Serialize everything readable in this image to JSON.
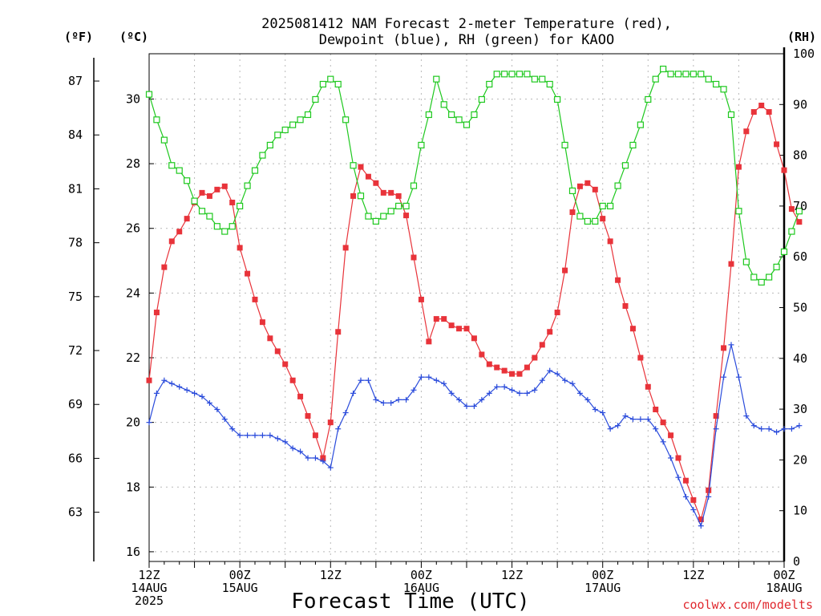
{
  "title_line1": "2025081412 NAM Forecast 2-meter Temperature (red),",
  "title_line2": "Dewpoint (blue), RH (green) for KAOO",
  "unit_f": "(ºF)",
  "unit_c": "(ºC)",
  "unit_rh": "(RH)",
  "x_label": "Forecast Time (UTC)",
  "credit": "coolwx.com/modelts",
  "colors": {
    "temperature": "#e8333a",
    "dewpoint": "#2a4bdb",
    "rh": "#1ec81e"
  },
  "chart_data": {
    "type": "line",
    "title": "2025081412 NAM Forecast 2-meter Temperature (red), Dewpoint (blue), RH (green) for KAOO",
    "xlabel": "Forecast Time (UTC)",
    "x_unit": "forecast hour from 2025-08-14 12Z",
    "x_range": [
      0,
      84
    ],
    "x_ticks": [
      {
        "hour": 0,
        "lines": [
          "12Z",
          "14AUG",
          "2025"
        ]
      },
      {
        "hour": 12,
        "lines": [
          "00Z",
          "15AUG"
        ]
      },
      {
        "hour": 24,
        "lines": [
          "12Z"
        ]
      },
      {
        "hour": 36,
        "lines": [
          "00Z",
          "16AUG"
        ]
      },
      {
        "hour": 48,
        "lines": [
          "12Z"
        ]
      },
      {
        "hour": 60,
        "lines": [
          "00Z",
          "17AUG"
        ]
      },
      {
        "hour": 72,
        "lines": [
          "12Z"
        ]
      },
      {
        "hour": 84,
        "lines": [
          "00Z",
          "18AUG"
        ]
      }
    ],
    "celsius_axis": {
      "range": [
        15.7,
        31.4
      ],
      "ticks": [
        16,
        18,
        20,
        22,
        24,
        26,
        28,
        30
      ]
    },
    "fahrenheit_axis": {
      "ticks": [
        63,
        66,
        69,
        72,
        75,
        78,
        81,
        84,
        87
      ]
    },
    "rh_axis": {
      "range": [
        0,
        100
      ],
      "ticks": [
        0,
        10,
        20,
        30,
        40,
        50,
        60,
        70,
        80,
        90,
        100
      ]
    },
    "grid": true,
    "series": [
      {
        "name": "Temperature (red)",
        "axis": "celsius",
        "marker": "filled-square",
        "values": [
          21.3,
          23.4,
          24.8,
          25.6,
          25.9,
          26.3,
          26.8,
          27.1,
          27.0,
          27.2,
          27.3,
          26.8,
          25.4,
          24.6,
          23.8,
          23.1,
          22.6,
          22.2,
          21.8,
          21.3,
          20.8,
          20.2,
          19.6,
          18.9,
          20.0,
          22.8,
          25.4,
          27.0,
          27.9,
          27.6,
          27.4,
          27.1,
          27.1,
          27.0,
          26.4,
          25.1,
          23.8,
          22.5,
          23.2,
          23.2,
          23.0,
          22.9,
          22.9,
          22.6,
          22.1,
          21.8,
          21.7,
          21.6,
          21.5,
          21.5,
          21.7,
          22.0,
          22.4,
          22.8,
          23.4,
          24.7,
          26.5,
          27.3,
          27.4,
          27.2,
          26.3,
          25.6,
          24.4,
          23.6,
          22.9,
          22.0,
          21.1,
          20.4,
          20.0,
          19.6,
          18.9,
          18.2,
          17.6,
          17.0,
          17.9,
          20.2,
          22.3,
          24.9,
          27.9,
          29.0,
          29.6,
          29.8,
          29.6,
          28.6,
          27.8,
          26.6,
          26.2
        ]
      },
      {
        "name": "Dewpoint (blue)",
        "axis": "celsius",
        "marker": "plus",
        "values": [
          20.0,
          20.9,
          21.3,
          21.2,
          21.1,
          21.0,
          20.9,
          20.8,
          20.6,
          20.4,
          20.1,
          19.8,
          19.6,
          19.6,
          19.6,
          19.6,
          19.6,
          19.5,
          19.4,
          19.2,
          19.1,
          18.9,
          18.9,
          18.8,
          18.6,
          19.8,
          20.3,
          20.9,
          21.3,
          21.3,
          20.7,
          20.6,
          20.6,
          20.7,
          20.7,
          21.0,
          21.4,
          21.4,
          21.3,
          21.2,
          20.9,
          20.7,
          20.5,
          20.5,
          20.7,
          20.9,
          21.1,
          21.1,
          21.0,
          20.9,
          20.9,
          21.0,
          21.3,
          21.6,
          21.5,
          21.3,
          21.2,
          20.9,
          20.7,
          20.4,
          20.3,
          19.8,
          19.9,
          20.2,
          20.1,
          20.1,
          20.1,
          19.8,
          19.4,
          18.9,
          18.3,
          17.7,
          17.3,
          16.8,
          17.7,
          19.8,
          21.4,
          22.4,
          21.4,
          20.2,
          19.9,
          19.8,
          19.8,
          19.7,
          19.8,
          19.8,
          19.9
        ]
      },
      {
        "name": "RH (green)",
        "axis": "rh",
        "marker": "open-square",
        "values": [
          92,
          87,
          83,
          78,
          77,
          75,
          71,
          69,
          68,
          66,
          65,
          66,
          70,
          74,
          77,
          80,
          82,
          84,
          85,
          86,
          87,
          88,
          91,
          94,
          95,
          94,
          87,
          78,
          72,
          68,
          67,
          68,
          69,
          70,
          70,
          74,
          82,
          88,
          95,
          90,
          88,
          87,
          86,
          88,
          91,
          94,
          96,
          96,
          96,
          96,
          96,
          95,
          95,
          94,
          91,
          82,
          73,
          68,
          67,
          67,
          70,
          70,
          74,
          78,
          82,
          86,
          91,
          95,
          97,
          96,
          96,
          96,
          96,
          96,
          95,
          94,
          93,
          88,
          69,
          59,
          56,
          55,
          56,
          58,
          61,
          65,
          69
        ]
      }
    ]
  }
}
